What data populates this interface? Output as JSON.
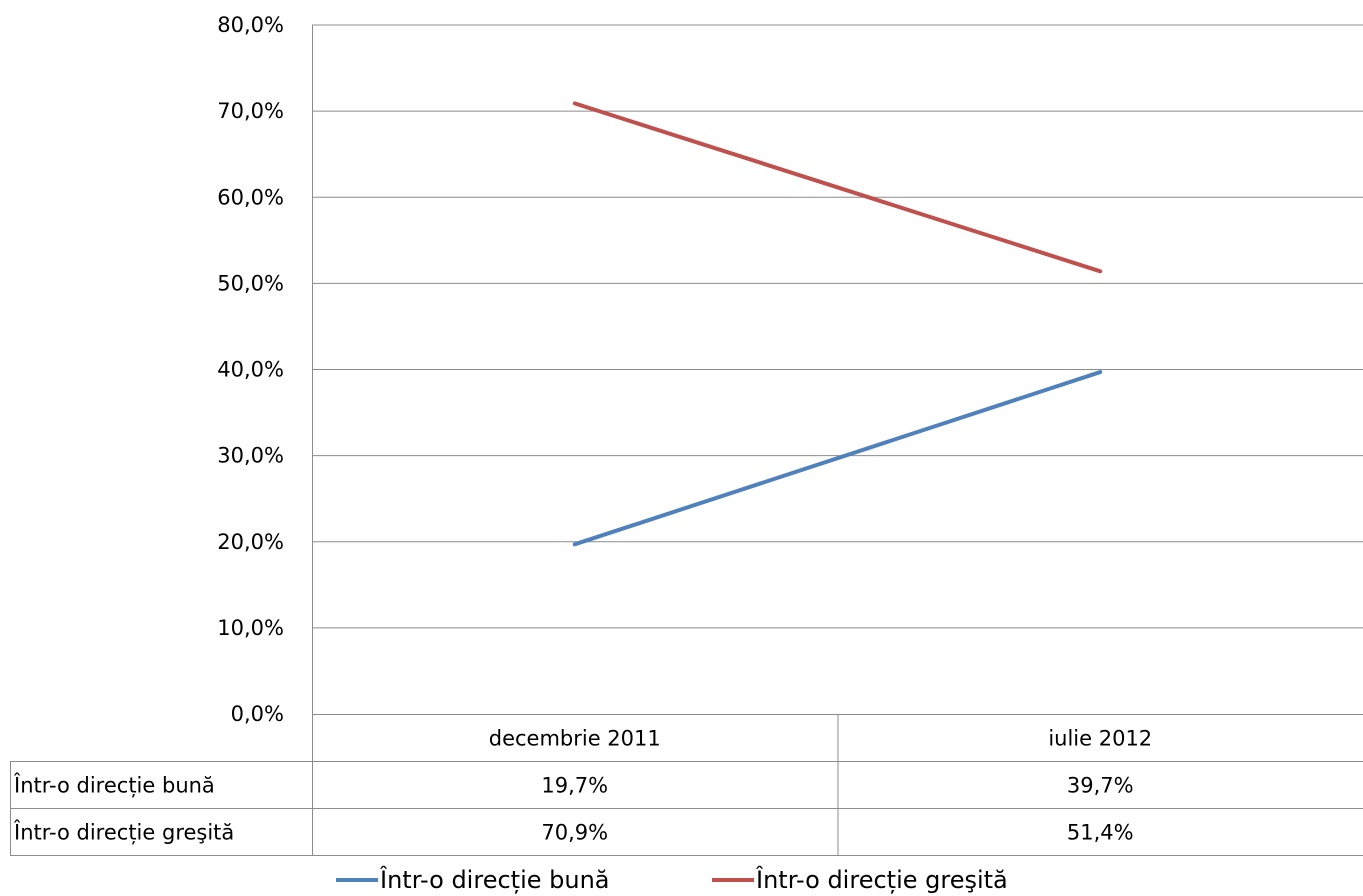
{
  "chart_data": {
    "type": "line",
    "title": "",
    "xlabel": "",
    "ylabel": "",
    "categories": [
      "decembrie 2011",
      "iulie 2012"
    ],
    "series": [
      {
        "name": "Într-o direcție bună",
        "values": [
          19.7,
          39.7
        ],
        "labels": [
          "19,7%",
          "39,7%"
        ],
        "color": "#4f81bd"
      },
      {
        "name": "Într-o direcție greşită",
        "values": [
          70.9,
          51.4
        ],
        "labels": [
          "70,9%",
          "51,4%"
        ],
        "color": "#c0504d"
      }
    ],
    "ylim": [
      0,
      80
    ],
    "y_ticks": [
      "0,0%",
      "10,0%",
      "20,0%",
      "30,0%",
      "40,0%",
      "50,0%",
      "60,0%",
      "70,0%",
      "80,0%"
    ],
    "grid": true,
    "data_table": true,
    "legend_position": "bottom"
  }
}
